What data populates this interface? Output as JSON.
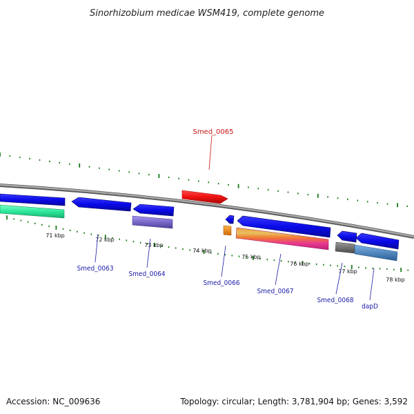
{
  "title": "Sinorhizobium medicae WSM419, complete genome",
  "footer": {
    "accession": "Accession: NC_009636",
    "topology": "Topology: circular; Length: 3,781,904 bp; Genes: 3,592"
  },
  "kbp_labels": [
    "71 kbp",
    "72 kbp",
    "73 kbp",
    "74 kbp",
    "75 kbp",
    "76 kbp",
    "77 kbp",
    "78 kbp"
  ],
  "gene_labels": {
    "smed_0063": "Smed_0063",
    "smed_0064": "Smed_0064",
    "smed_0065": "Smed_0065",
    "smed_0066": "Smed_0066",
    "smed_0067": "Smed_0067",
    "smed_0068": "Smed_0068",
    "dapd": "dapD"
  },
  "colors": {
    "gene_blue": "#0a0ae8",
    "gene_red": "#ee1111",
    "green_track": "#2ee89a",
    "purple_track": "#7a68c8",
    "orange_track": "#f08a1a",
    "gray_track": "#707070",
    "steel_blue_track": "#4a86c2",
    "backbone": "#8a8a8a",
    "tick_green": "#1a7a1a"
  }
}
